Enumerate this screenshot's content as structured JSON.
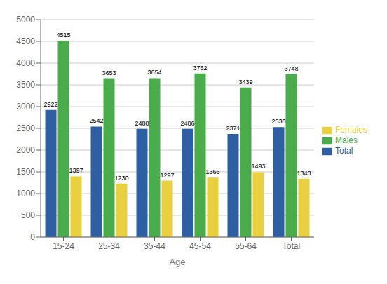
{
  "chart_data": {
    "type": "bar",
    "xlabel": "Age",
    "categories": [
      "15-24",
      "25-34",
      "35-44",
      "45-54",
      "55-64",
      "Total"
    ],
    "series": [
      {
        "name": "Total",
        "color": "#2e5fa3",
        "values": [
          2922,
          2542,
          2488,
          2486,
          2371,
          2530
        ]
      },
      {
        "name": "Males",
        "color": "#4aac4a",
        "values": [
          4515,
          3653,
          3654,
          3762,
          3439,
          3748
        ]
      },
      {
        "name": "Females",
        "color": "#e8d040",
        "values": [
          1397,
          1230,
          1297,
          1366,
          1493,
          1343
        ]
      }
    ],
    "ylim": [
      0,
      5000
    ],
    "yticks": [
      0,
      500,
      1000,
      1500,
      2000,
      2500,
      3000,
      3500,
      4000,
      4500,
      5000
    ],
    "grid": true,
    "legend": "right",
    "data_labels": true
  }
}
